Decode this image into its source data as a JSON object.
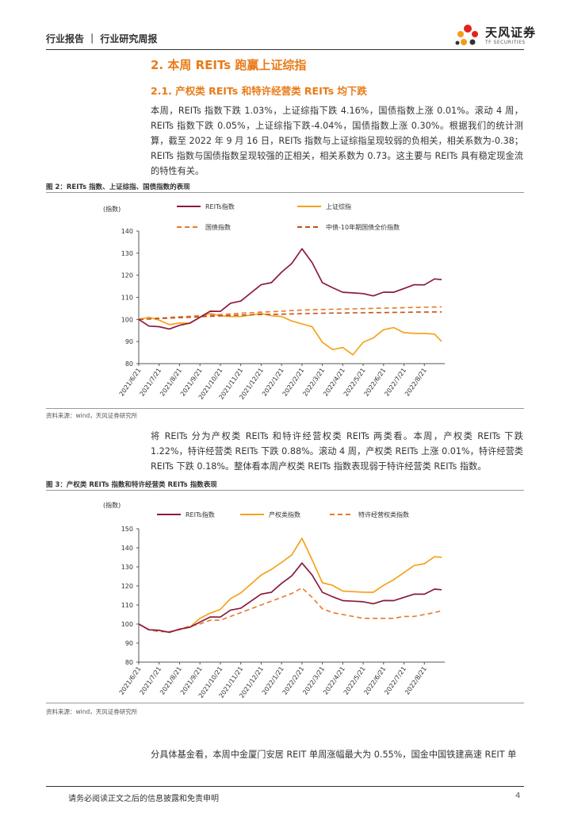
{
  "header": {
    "title": "行业报告 ｜ 行业研究周报"
  },
  "logo": {
    "name": "天风证券",
    "sub": "TF SECURITIES"
  },
  "section": {
    "h2": "2. 本周 REITs 跑赢上证综指",
    "h3": "2.1. 产权类 REITs 和特许经营类 REITs 均下跌"
  },
  "para1": "本周，REITs 指数下跌 1.03%，上证综指下跌 4.16%，国债指数上涨 0.01%。滚动 4 周，REITs 指数下跌 0.05%，上证综指下跌-4.04%，国债指数上涨 0.30%。根据我们的统计测算，截至 2022 年 9 月 16 日，REITs 指数与上证综指呈现较弱的负相关，相关系数为-0.38；REITs 指数与国债指数呈现较强的正相关，相关系数为 0.73。这主要与 REITs 具有稳定现金流的特性有关。",
  "fig2": {
    "title": "图 2：REITs 指数、上证综指、国债指数的表现",
    "source": "资料来源：wind，天风证券研究所"
  },
  "para2": "将 REITs 分为产权类 REITs 和特许经营权类 REITs 两类看。本周，产权类 REITs 下跌 1.22%，特许经营类 REITs 下跌 0.88%。滚动 4 周，产权类 REITs 上涨 0.01%，特许经营类 REITs 下跌 0.18%。整体看本周产权类 REITs 指数表现弱于特许经营类 REITs 指数。",
  "fig3": {
    "title": "图 3：产权类 REITs 指数和特许经营类 REITs 指数表现",
    "source": "资料来源：wind，天风证券研究所"
  },
  "para3": "分具体基金看，本周中金厦门安居 REIT 单周涨幅最大为 0.55%，国金中国铁建高速 REIT 单",
  "footer": {
    "text": "请务必阅读正文之后的信息披露和免责申明",
    "page": "4"
  },
  "colors": {
    "maroon": "#8b1a3e",
    "orange": "#f5a31a",
    "darkorange": "#e8782a",
    "brand": "#ea7a17"
  },
  "chart_data": [
    {
      "type": "line",
      "title": "图 2：REITs 指数、上证综指、国债指数的表现",
      "ylabel": "(指数)",
      "ylim": [
        80,
        140
      ],
      "yticks": [
        80,
        90,
        100,
        110,
        120,
        130,
        140
      ],
      "xticks": [
        "2021/6/21",
        "2021/7/21",
        "2021/8/21",
        "2021/9/21",
        "2021/10/21",
        "2021/11/21",
        "2021/12/21",
        "2022/1/21",
        "2022/2/21",
        "2022/3/21",
        "2022/4/21",
        "2022/5/21",
        "2022/6/21",
        "2022/7/21",
        "2022/8/21"
      ],
      "x": [
        0,
        0.5,
        1,
        1.5,
        2,
        2.5,
        3,
        3.5,
        4,
        4.5,
        5,
        5.5,
        6,
        6.5,
        7,
        7.5,
        8,
        8.5,
        9,
        9.5,
        10,
        10.5,
        11,
        11.5,
        12,
        12.5,
        13,
        13.5,
        14,
        14.5,
        14.85
      ],
      "series": [
        {
          "name": "REITs指数",
          "legend_label": "REITs指数",
          "style": "solid",
          "values": [
            100,
            97,
            96,
            96,
            97,
            99,
            101,
            103,
            104,
            107,
            109,
            112,
            115,
            117,
            121,
            126,
            132,
            125,
            117,
            114,
            113,
            112,
            111,
            111,
            112,
            113,
            114,
            115,
            116,
            118,
            118
          ]
        },
        {
          "name": "上证综指",
          "legend_label": "上证综指",
          "style": "solid",
          "values": [
            100,
            101,
            99,
            98,
            98,
            99,
            101,
            102,
            102,
            101,
            102,
            102,
            102,
            102,
            101,
            100,
            98,
            96,
            90,
            86,
            88,
            84,
            89,
            92,
            95,
            97,
            94,
            93,
            94,
            93,
            90
          ]
        },
        {
          "name": "国债指数",
          "legend_label": "国债指数",
          "style": "dashed",
          "values": [
            100,
            100.3,
            100.6,
            100.9,
            101.2,
            101.4,
            101.7,
            102,
            102.2,
            102.5,
            102.8,
            103,
            103.3,
            103.5,
            103.7,
            104,
            104.2,
            104.4,
            104.5,
            104.6,
            104.7,
            104.8,
            104.9,
            105,
            105.1,
            105.2,
            105.3,
            105.4,
            105.5,
            105.6,
            105.7
          ]
        },
        {
          "name": "中债-10年期国债全价指数",
          "legend_label": "中债-10年期国债全价指数",
          "style": "dashed",
          "values": [
            100,
            100.2,
            100.4,
            100.6,
            100.8,
            101,
            101.2,
            101.4,
            101.6,
            101.8,
            102,
            102.1,
            102.2,
            102.3,
            102.4,
            102.5,
            102.6,
            102.7,
            102.8,
            102.9,
            102.9,
            103,
            103,
            103.1,
            103.1,
            103.2,
            103.2,
            103.3,
            103.3,
            103.4,
            103.4
          ]
        }
      ]
    },
    {
      "type": "line",
      "title": "图 3：产权类 REITs 指数和特许经营类 REITs 指数表现",
      "ylabel": "(指数)",
      "ylim": [
        80,
        150
      ],
      "yticks": [
        80,
        90,
        100,
        110,
        120,
        130,
        140,
        150
      ],
      "xticks": [
        "2021/6/21",
        "2021/7/21",
        "2021/8/21",
        "2021/9/21",
        "2021/10/21",
        "2021/11/21",
        "2021/12/21",
        "2022/1/21",
        "2022/2/21",
        "2022/3/21",
        "2022/4/21",
        "2022/5/21",
        "2022/6/21",
        "2022/7/21",
        "2022/8/21"
      ],
      "x": [
        0,
        0.5,
        1,
        1.5,
        2,
        2.5,
        3,
        3.5,
        4,
        4.5,
        5,
        5.5,
        6,
        6.5,
        7,
        7.5,
        8,
        8.5,
        9,
        9.5,
        10,
        10.5,
        11,
        11.5,
        12,
        12.5,
        13,
        13.5,
        14,
        14.5,
        14.85
      ],
      "series": [
        {
          "name": "REITs指数",
          "legend_label": "REITs指数",
          "style": "solid",
          "values": [
            100,
            97,
            96,
            96,
            97,
            99,
            101,
            103,
            104,
            107,
            109,
            112,
            115,
            117,
            121,
            126,
            132,
            125,
            117,
            114,
            113,
            112,
            111,
            111,
            112,
            113,
            114,
            115,
            116,
            118,
            118
          ]
        },
        {
          "name": "产权类指数",
          "legend_label": "产权类指数",
          "style": "solid",
          "values": [
            100,
            97,
            96,
            96,
            97,
            99,
            103,
            105,
            108,
            113,
            117,
            121,
            125,
            129,
            132,
            137,
            145,
            133,
            122,
            120,
            118,
            117,
            116,
            117,
            120,
            124,
            127,
            130,
            132,
            135,
            135
          ]
        },
        {
          "name": "特许经营权类指数",
          "legend_label": "特许经营权类指数",
          "style": "dashed",
          "values": [
            100,
            97,
            96,
            96,
            97,
            99,
            100,
            102,
            102,
            104,
            106,
            108,
            110,
            112,
            114,
            116,
            119,
            114,
            108,
            106,
            105,
            104,
            103,
            103,
            103,
            103,
            104,
            104,
            105,
            106,
            107
          ]
        }
      ]
    }
  ]
}
